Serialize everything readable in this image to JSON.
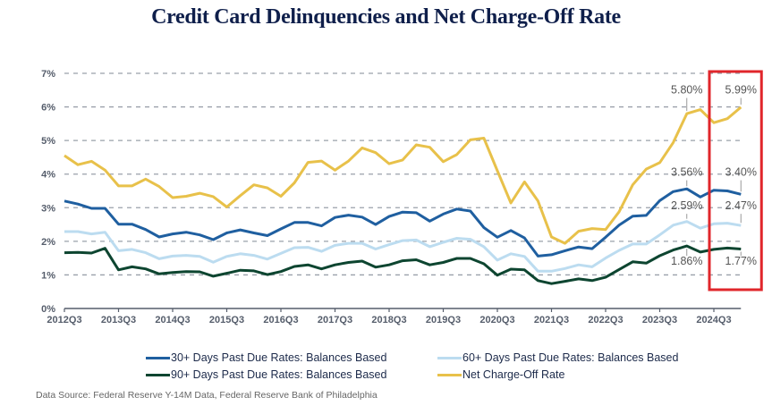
{
  "chart_data": {
    "type": "line",
    "title": "Credit Card Delinquencies and Net Charge-Off Rate",
    "xlabel": "",
    "ylabel": "",
    "ylim": [
      0,
      7
    ],
    "y_ticks": [
      "0%",
      "1%",
      "2%",
      "3%",
      "4%",
      "5%",
      "6%",
      "7%"
    ],
    "x_start": "2012Q3",
    "x_tick_labels": [
      "2012Q3",
      "2013Q3",
      "2014Q3",
      "2015Q3",
      "2016Q3",
      "2017Q3",
      "2018Q3",
      "2019Q3",
      "2020Q3",
      "2021Q3",
      "2022Q3",
      "2023Q3",
      "2024Q3"
    ],
    "grid": "horizontal-dashed",
    "legend_position": "bottom",
    "series": [
      {
        "name": "30+ Days Past Due Rates: Balances Based",
        "color": "#1f5fa0",
        "values": [
          3.2,
          3.11,
          2.98,
          2.98,
          2.51,
          2.51,
          2.35,
          2.13,
          2.22,
          2.27,
          2.19,
          2.05,
          2.25,
          2.34,
          2.25,
          2.17,
          2.37,
          2.56,
          2.56,
          2.46,
          2.71,
          2.78,
          2.72,
          2.5,
          2.74,
          2.87,
          2.85,
          2.6,
          2.81,
          2.96,
          2.9,
          2.41,
          2.12,
          2.32,
          2.1,
          1.56,
          1.6,
          1.72,
          1.83,
          1.78,
          2.12,
          2.48,
          2.75,
          2.77,
          3.21,
          3.48,
          3.56,
          3.32,
          3.52,
          3.5,
          3.4
        ]
      },
      {
        "name": "60+ Days Past Due Rates: Balances Based",
        "color": "#bcdcf0",
        "values": [
          2.29,
          2.29,
          2.22,
          2.27,
          1.72,
          1.76,
          1.66,
          1.48,
          1.56,
          1.58,
          1.55,
          1.38,
          1.55,
          1.63,
          1.58,
          1.47,
          1.64,
          1.81,
          1.82,
          1.7,
          1.88,
          1.94,
          1.94,
          1.77,
          1.9,
          2.02,
          2.04,
          1.84,
          1.97,
          2.09,
          2.06,
          1.84,
          1.44,
          1.63,
          1.55,
          1.11,
          1.11,
          1.19,
          1.3,
          1.24,
          1.5,
          1.73,
          1.92,
          1.92,
          2.19,
          2.48,
          2.59,
          2.39,
          2.52,
          2.54,
          2.47
        ]
      },
      {
        "name": "90+ Days Past Due Rates: Balances Based",
        "color": "#0d4530",
        "values": [
          1.66,
          1.67,
          1.65,
          1.79,
          1.15,
          1.24,
          1.18,
          1.03,
          1.07,
          1.1,
          1.09,
          0.96,
          1.05,
          1.14,
          1.12,
          1.01,
          1.1,
          1.25,
          1.3,
          1.18,
          1.3,
          1.37,
          1.41,
          1.23,
          1.3,
          1.42,
          1.45,
          1.3,
          1.37,
          1.49,
          1.49,
          1.33,
          0.99,
          1.17,
          1.15,
          0.83,
          0.74,
          0.81,
          0.88,
          0.83,
          0.93,
          1.16,
          1.39,
          1.35,
          1.57,
          1.74,
          1.86,
          1.68,
          1.76,
          1.8,
          1.77
        ]
      },
      {
        "name": "Net Charge-Off Rate",
        "color": "#e8c14a",
        "values": [
          4.55,
          4.28,
          4.38,
          4.12,
          3.65,
          3.65,
          3.85,
          3.63,
          3.3,
          3.34,
          3.43,
          3.33,
          3.02,
          3.36,
          3.68,
          3.59,
          3.34,
          3.74,
          4.35,
          4.39,
          4.12,
          4.39,
          4.78,
          4.64,
          4.31,
          4.42,
          4.87,
          4.8,
          4.37,
          4.58,
          5.02,
          5.07,
          4.1,
          3.14,
          3.77,
          3.2,
          2.13,
          1.94,
          2.3,
          2.38,
          2.35,
          2.88,
          3.68,
          4.15,
          4.34,
          4.94,
          5.8,
          5.92,
          5.53,
          5.65,
          5.99
        ]
      }
    ],
    "annotations": [
      {
        "text": "5.80%",
        "series": 3,
        "index": 46
      },
      {
        "text": "5.99%",
        "series": 3,
        "index": 50
      },
      {
        "text": "3.56%",
        "series": 0,
        "index": 46
      },
      {
        "text": "3.40%",
        "series": 0,
        "index": 50
      },
      {
        "text": "2.59%",
        "series": 1,
        "index": 46
      },
      {
        "text": "2.47%",
        "series": 1,
        "index": 50
      },
      {
        "text": "1.86%",
        "series": 2,
        "index": 46
      },
      {
        "text": "1.77%",
        "series": 2,
        "index": 50
      }
    ],
    "highlight_box": {
      "from_index": 48,
      "to_index": 50,
      "color": "#e0262b"
    }
  },
  "legend": [
    {
      "label": "30+ Days Past Due Rates: Balances Based",
      "color": "#1f5fa0"
    },
    {
      "label": "60+ Days Past Due Rates: Balances Based",
      "color": "#bcdcf0"
    },
    {
      "label": "90+ Days Past Due Rates: Balances Based",
      "color": "#0d4530"
    },
    {
      "label": "Net Charge-Off Rate",
      "color": "#e8c14a"
    }
  ],
  "source": "Data Source: Federal Reserve Y-14M Data, Federal Reserve Bank of Philadelphia"
}
